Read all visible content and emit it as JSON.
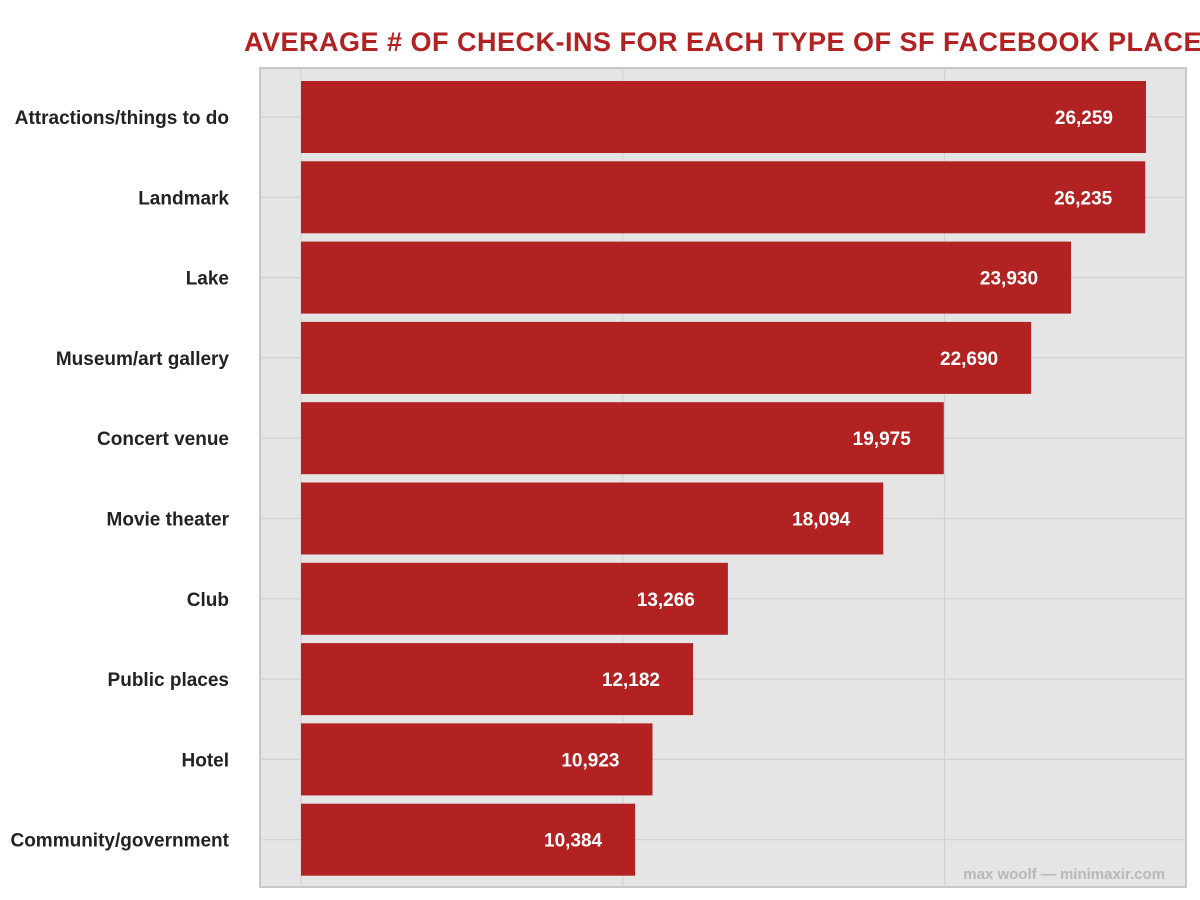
{
  "chart_data": {
    "type": "bar",
    "orientation": "horizontal",
    "title": "AVERAGE # OF CHECK-INS FOR EACH TYPE OF SF FACEBOOK PLACE",
    "xlabel": "",
    "ylabel": "",
    "categories": [
      "Attractions/things to do",
      "Landmark",
      "Lake",
      "Museum/art gallery",
      "Concert venue",
      "Movie theater",
      "Club",
      "Public places",
      "Hotel",
      "Community/government"
    ],
    "values": [
      26259,
      26235,
      23930,
      22690,
      19975,
      18094,
      13266,
      12182,
      10923,
      10384
    ],
    "value_labels": [
      "26,259",
      "26,235",
      "23,930",
      "22,690",
      "19,975",
      "18,094",
      "13,266",
      "12,182",
      "10,923",
      "10,384"
    ],
    "xlim": [
      0,
      27100
    ],
    "grid": true,
    "legend": "none",
    "colors": {
      "bar": "#b22222",
      "title": "#b22222",
      "panel": "#e5e5e5",
      "gridline": "#d2d2d2",
      "value_text": "#ffffff",
      "credit": "#b8b8b8"
    }
  },
  "credit": "max woolf — minimaxir.com"
}
